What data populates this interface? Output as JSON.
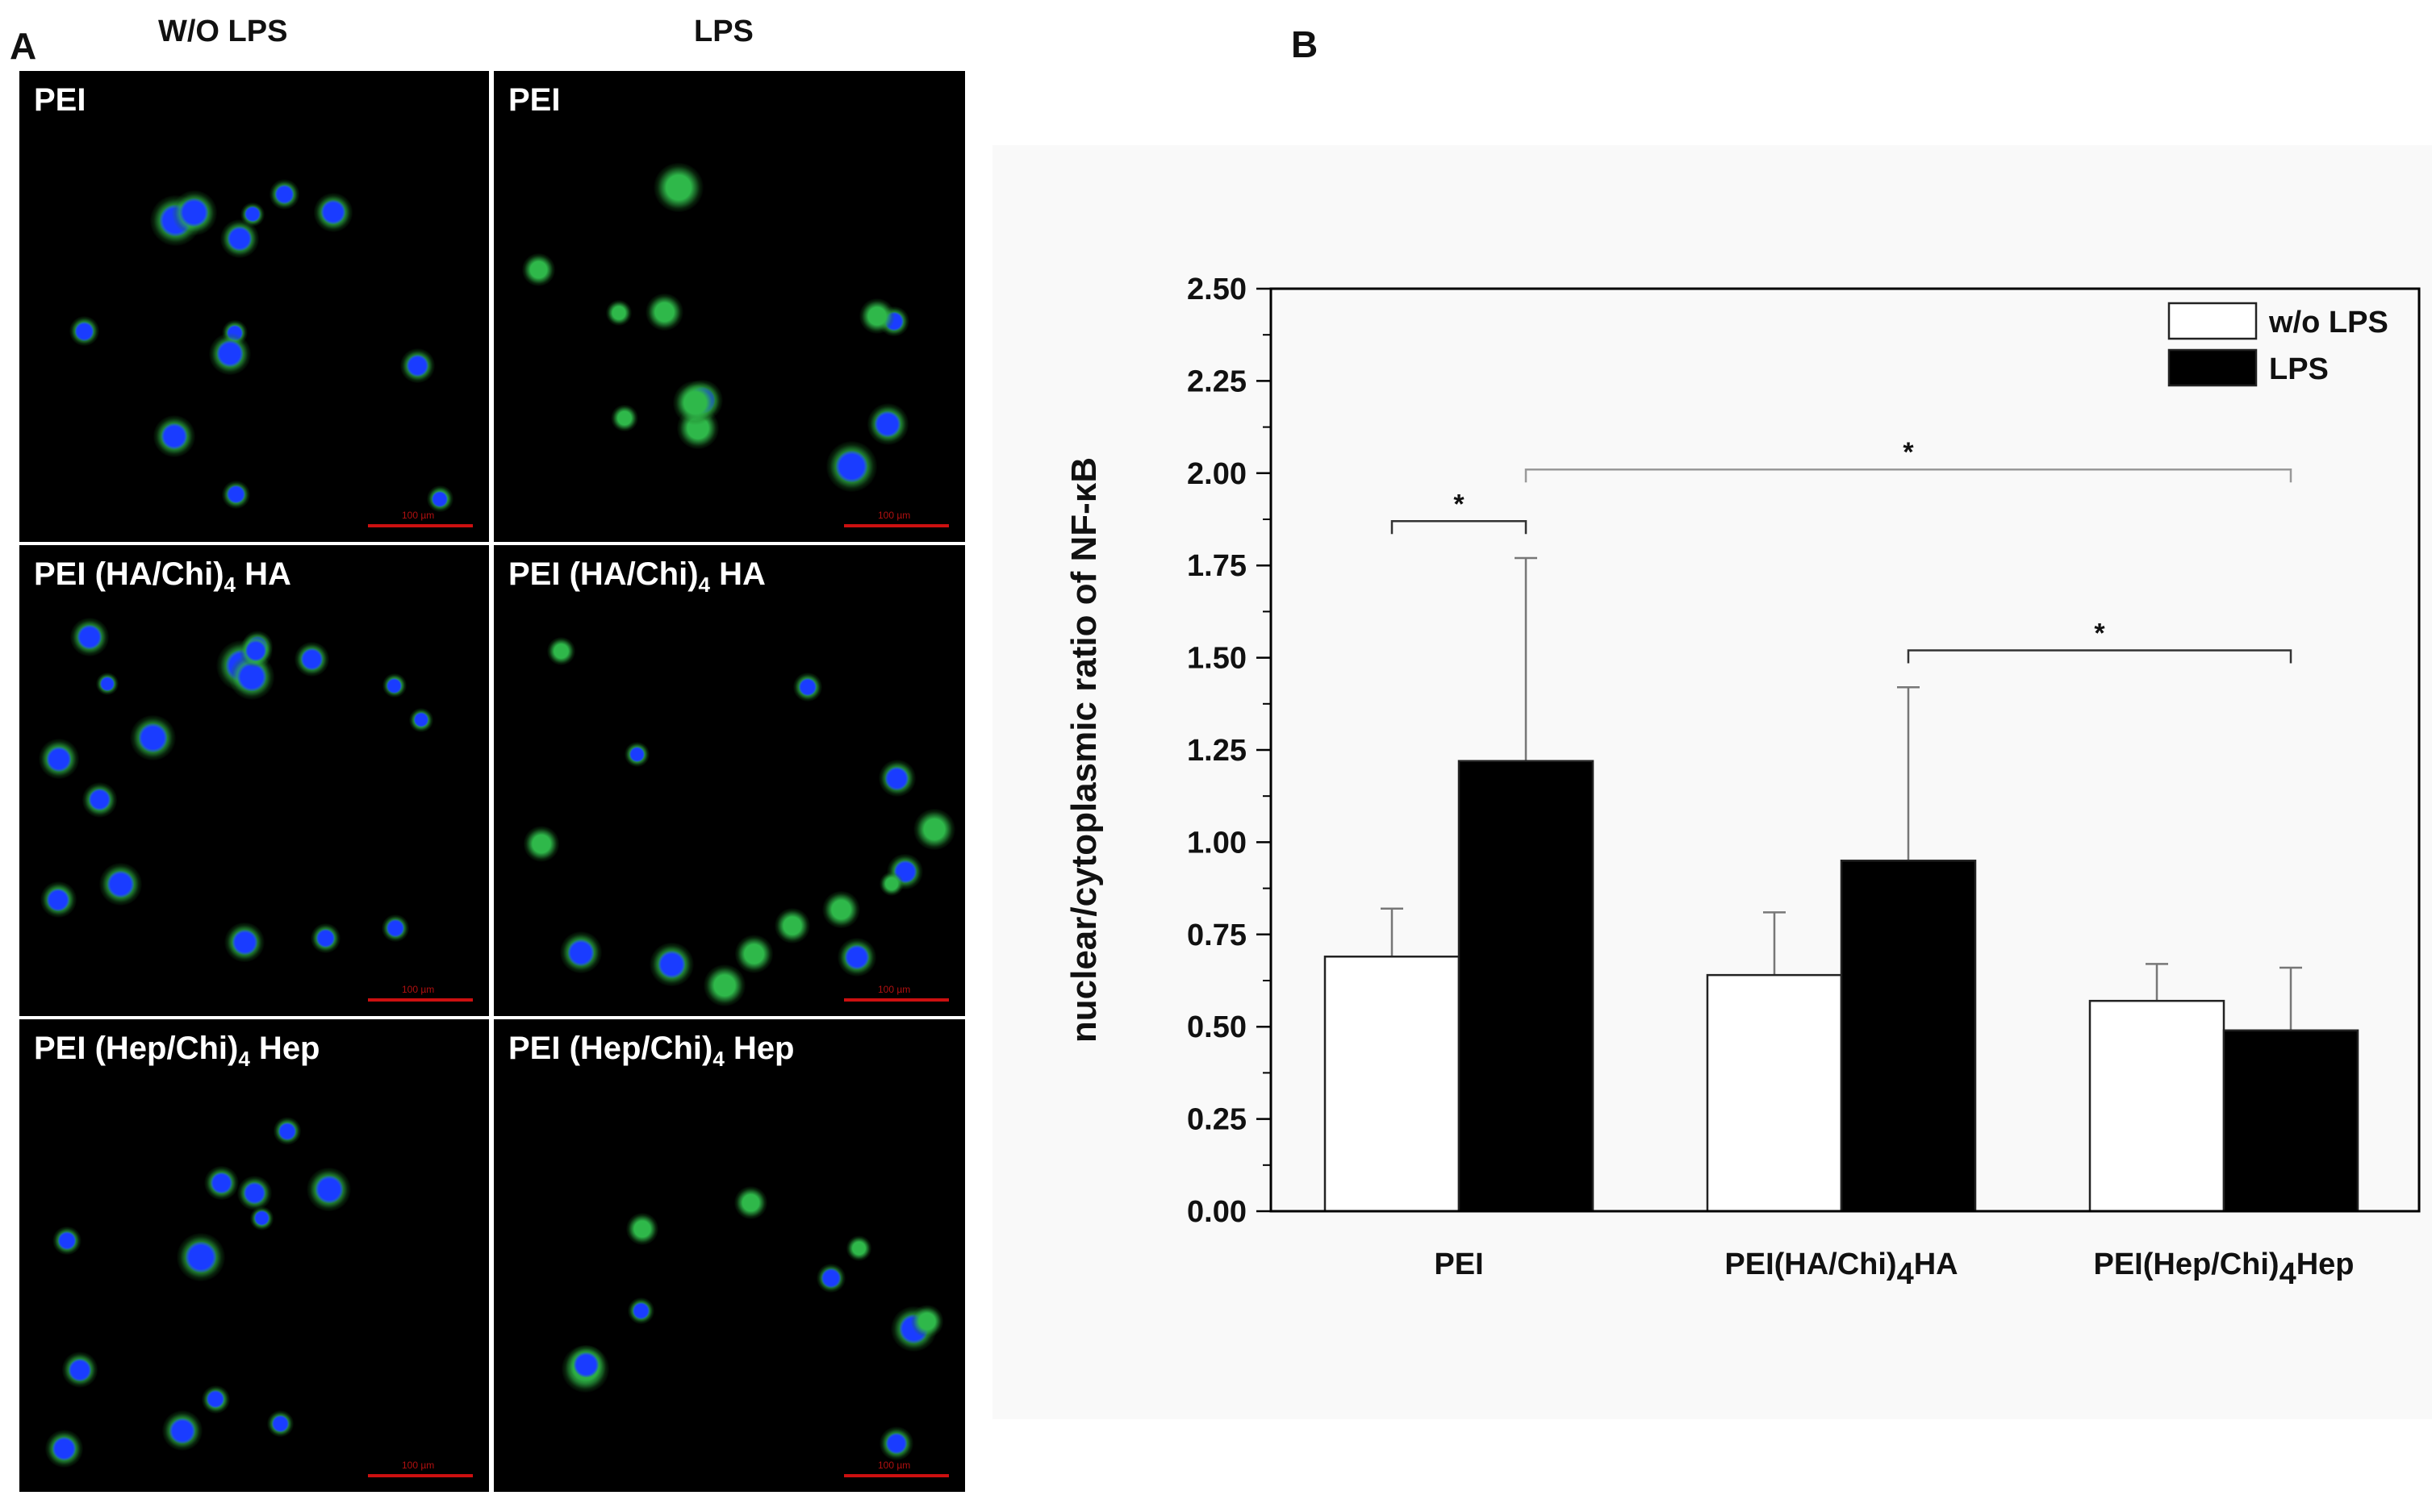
{
  "panel_a": {
    "letter": "A",
    "columns": [
      "W/O LPS",
      "LPS"
    ],
    "rows": [
      {
        "label_left": "PEI",
        "label_right": "PEI"
      },
      {
        "label_left": "PEI (HA/Chi)",
        "sub_left": "4",
        "tail_left": " HA",
        "label_right": "PEI (HA/Chi)",
        "sub_right": "4",
        "tail_right": " HA"
      },
      {
        "label_left": "PEI (Hep/Chi)",
        "sub_left": "4",
        "tail_left": " Hep",
        "label_right": "PEI (Hep/Chi)",
        "sub_right": "4",
        "tail_right": " Hep"
      }
    ],
    "scale_text": "100 µm",
    "colors": {
      "nucleus": "#1a3cff",
      "cytoplasm": "#2fb84a",
      "scale": "#cc1010"
    }
  },
  "panel_b": {
    "letter": "B"
  },
  "chart_data": {
    "type": "bar",
    "ylabel": "nuclear/cytoplasmic ratio of NF-κB",
    "xlabel": "",
    "ylim": [
      0,
      2.5
    ],
    "yticks": [
      "0.00",
      "0.25",
      "0.50",
      "0.75",
      "1.00",
      "1.25",
      "1.50",
      "1.75",
      "2.00",
      "2.25",
      "2.50"
    ],
    "categories": [
      {
        "main": "PEI",
        "sub": "",
        "tail": ""
      },
      {
        "main": "PEI(HA/Chi)",
        "sub": "4",
        "tail": "HA"
      },
      {
        "main": "PEI(Hep/Chi)",
        "sub": "4",
        "tail": "Hep"
      }
    ],
    "series": [
      {
        "name": "w/o LPS",
        "color": "#ffffff",
        "values": [
          0.69,
          0.64,
          0.57
        ],
        "errors": [
          0.13,
          0.17,
          0.1
        ]
      },
      {
        "name": "LPS",
        "color": "#000000",
        "values": [
          1.22,
          0.95,
          0.49
        ],
        "errors": [
          0.55,
          0.47,
          0.17
        ]
      }
    ],
    "significance": [
      {
        "label": "*",
        "from": "PEI / w/o LPS",
        "to": "PEI / LPS",
        "y": 1.87
      },
      {
        "label": "*",
        "from": "PEI / LPS",
        "to": "PEI(Hep/Chi)4Hep / LPS",
        "y": 2.01
      },
      {
        "label": "*",
        "from": "PEI(HA/Chi)4HA / LPS",
        "to": "PEI(Hep/Chi)4Hep / LPS",
        "y": 1.52
      }
    ],
    "legend_position": "top-right",
    "grid": false
  }
}
